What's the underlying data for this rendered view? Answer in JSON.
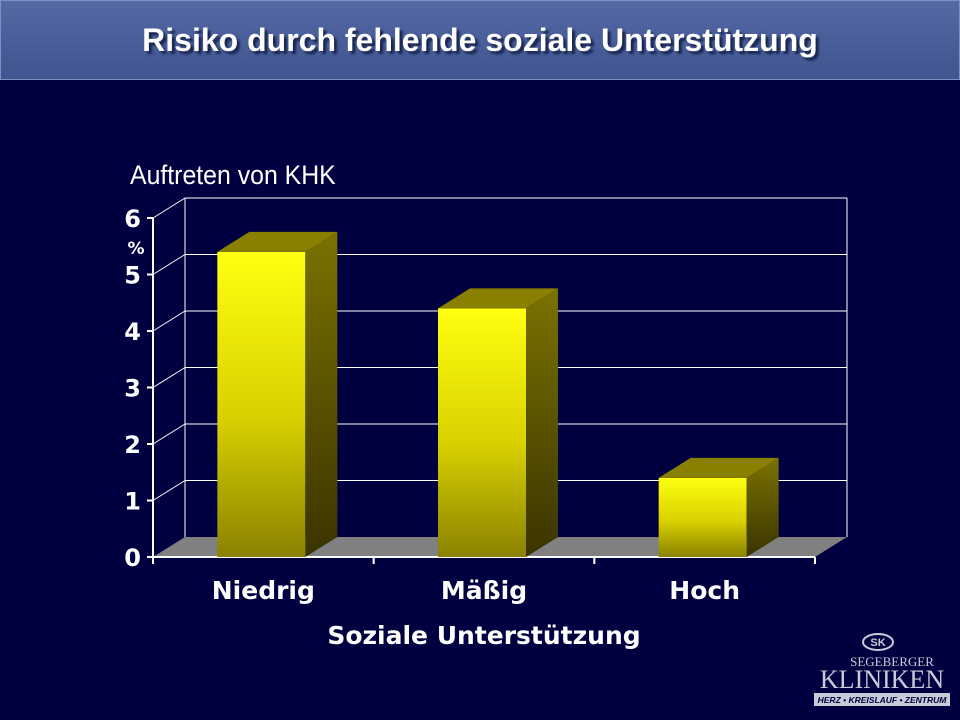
{
  "header": {
    "title": "Risiko durch fehlende soziale Unterstützung"
  },
  "chart_data": {
    "type": "bar",
    "subtitle": "Auftreten von KHK",
    "categories": [
      "Niedrig",
      "Mäßig",
      "Hoch"
    ],
    "values": [
      5.4,
      4.4,
      1.4
    ],
    "xlabel": "Soziale Unterstützung",
    "unit": "%",
    "ylim": [
      0,
      6
    ],
    "yticks": [
      "0",
      "1",
      "2",
      "3",
      "4",
      "5",
      "6"
    ],
    "grid": true,
    "colors": {
      "bar_front": "#ffff00",
      "bar_side": "#5c5400",
      "bar_top": "#8a8000",
      "floor": "#808080",
      "grid": "#ffffff"
    }
  },
  "logo": {
    "monogram": "SK",
    "line1": "SEGEBERGER",
    "line2": "KLINIKEN",
    "line3": "HERZ • KREISLAUF • ZENTRUM"
  }
}
